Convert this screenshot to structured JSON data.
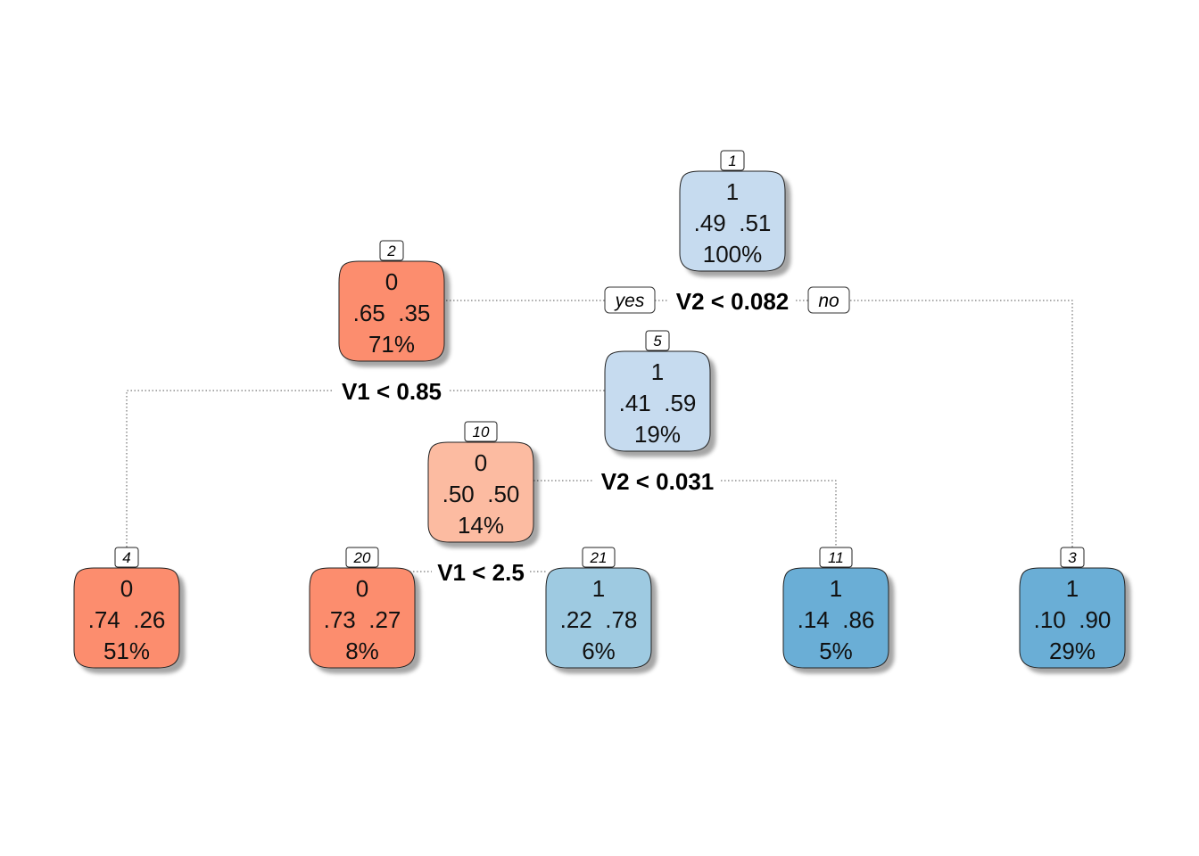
{
  "tree": {
    "yes_label": "yes",
    "no_label": "no",
    "nodes": [
      {
        "id": "1",
        "class_label": "1",
        "probs": ".49  .51",
        "percent": "100%",
        "fill": "#c6dbef"
      },
      {
        "id": "2",
        "class_label": "0",
        "probs": ".65  .35",
        "percent": "71%",
        "fill": "#fc8d6e"
      },
      {
        "id": "5",
        "class_label": "1",
        "probs": ".41  .59",
        "percent": "19%",
        "fill": "#c6dbef"
      },
      {
        "id": "10",
        "class_label": "0",
        "probs": ".50  .50",
        "percent": "14%",
        "fill": "#fcbba1"
      },
      {
        "id": "4",
        "class_label": "0",
        "probs": ".74  .26",
        "percent": "51%",
        "fill": "#fc8d6e"
      },
      {
        "id": "20",
        "class_label": "0",
        "probs": ".73  .27",
        "percent": "8%",
        "fill": "#fc8d6e"
      },
      {
        "id": "21",
        "class_label": "1",
        "probs": ".22  .78",
        "percent": "6%",
        "fill": "#9ecae1"
      },
      {
        "id": "11",
        "class_label": "1",
        "probs": ".14  .86",
        "percent": "5%",
        "fill": "#6baed6"
      },
      {
        "id": "3",
        "class_label": "1",
        "probs": ".10  .90",
        "percent": "29%",
        "fill": "#6baed6"
      }
    ],
    "splits": [
      {
        "node": "1",
        "rule": "V2 < 0.082"
      },
      {
        "node": "2",
        "rule": "V1 < 0.85"
      },
      {
        "node": "5",
        "rule": "V2 < 0.031"
      },
      {
        "node": "10",
        "rule": "V1 < 2.5"
      }
    ]
  }
}
